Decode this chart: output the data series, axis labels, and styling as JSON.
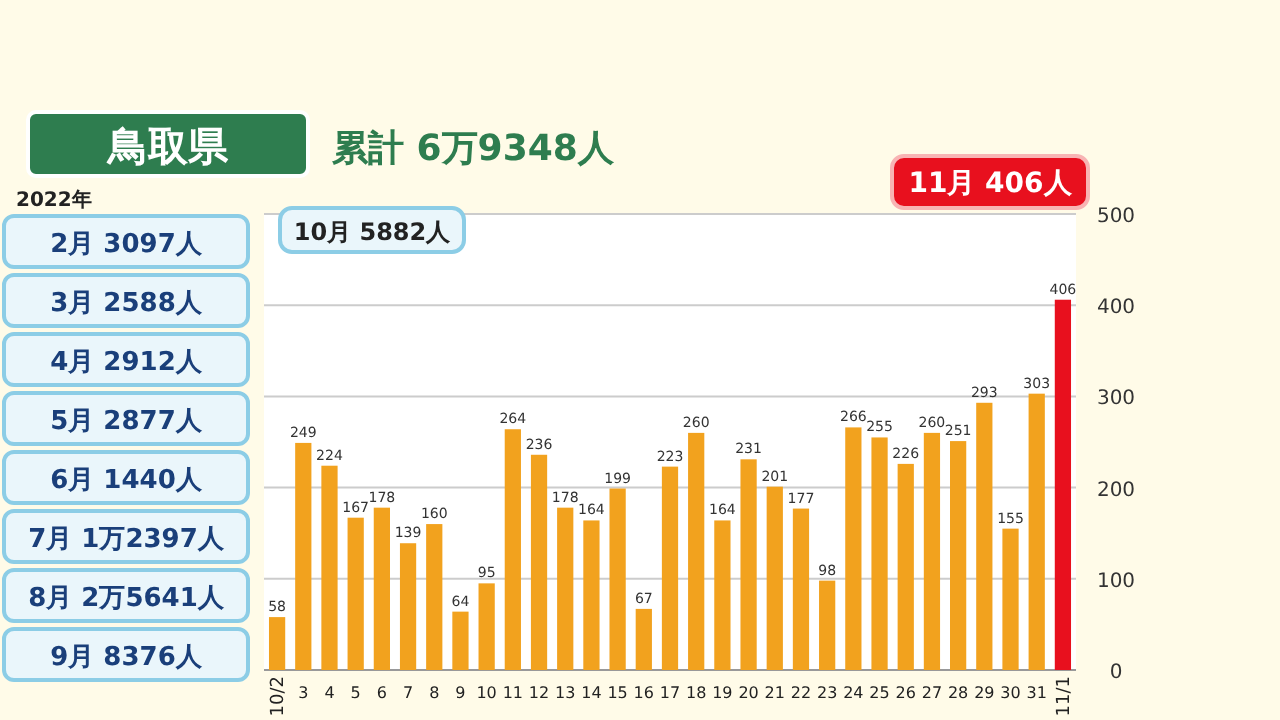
{
  "chart_data": {
    "type": "bar",
    "title": "鳥取県",
    "subtitle": "累計 6万9348人",
    "categories": [
      "10/2",
      "3",
      "4",
      "5",
      "6",
      "7",
      "8",
      "9",
      "10",
      "11",
      "12",
      "13",
      "14",
      "15",
      "16",
      "17",
      "18",
      "19",
      "20",
      "21",
      "22",
      "23",
      "24",
      "25",
      "26",
      "27",
      "28",
      "29",
      "30",
      "31",
      "11/1"
    ],
    "values": [
      58,
      249,
      224,
      167,
      178,
      139,
      160,
      64,
      95,
      264,
      236,
      178,
      164,
      199,
      67,
      223,
      260,
      164,
      231,
      201,
      177,
      98,
      266,
      255,
      226,
      260,
      251,
      293,
      155,
      303,
      406
    ],
    "colors": [
      "#f2a21e",
      "#f2a21e",
      "#f2a21e",
      "#f2a21e",
      "#f2a21e",
      "#f2a21e",
      "#f2a21e",
      "#f2a21e",
      "#f2a21e",
      "#f2a21e",
      "#f2a21e",
      "#f2a21e",
      "#f2a21e",
      "#f2a21e",
      "#f2a21e",
      "#f2a21e",
      "#f2a21e",
      "#f2a21e",
      "#f2a21e",
      "#f2a21e",
      "#f2a21e",
      "#f2a21e",
      "#f2a21e",
      "#f2a21e",
      "#f2a21e",
      "#f2a21e",
      "#f2a21e",
      "#f2a21e",
      "#f2a21e",
      "#f2a21e",
      "#e8101e"
    ],
    "ylim": [
      0,
      500
    ],
    "yticks": [
      0,
      100,
      200,
      300,
      400,
      500
    ],
    "grid": "y",
    "data_labels": true,
    "annotations": [
      "10月 5882人",
      "11月 406人",
      "2022年",
      "2月 3097人",
      "3月 2588人",
      "4月 2912人",
      "5月 2877人",
      "6月 1440人",
      "7月 1万2397人",
      "8月 2万5641人",
      "9月 8376人"
    ]
  }
}
